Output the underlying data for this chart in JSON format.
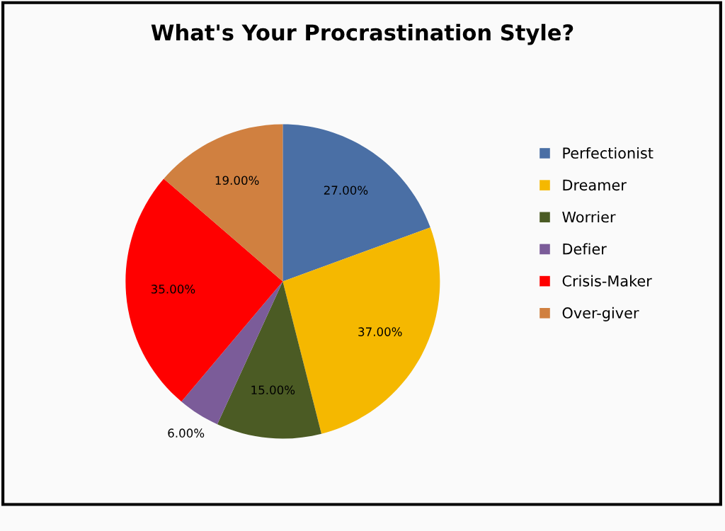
{
  "chart_data": {
    "type": "pie",
    "title": "What's Your Procrastination Style?",
    "categories": [
      "Perfectionist",
      "Dreamer",
      "Worrier",
      "Defier",
      "Crisis-Maker",
      "Over-giver"
    ],
    "values": [
      27,
      37,
      15,
      6,
      35,
      19
    ],
    "value_labels": [
      "27.00%",
      "37.00%",
      "15.00%",
      "6.00%",
      "35.00%",
      "19.00%"
    ],
    "colors": [
      "#4a6fa5",
      "#f5b800",
      "#4b5b24",
      "#7b5c99",
      "#ff0000",
      "#d08040"
    ],
    "legend": "right"
  }
}
